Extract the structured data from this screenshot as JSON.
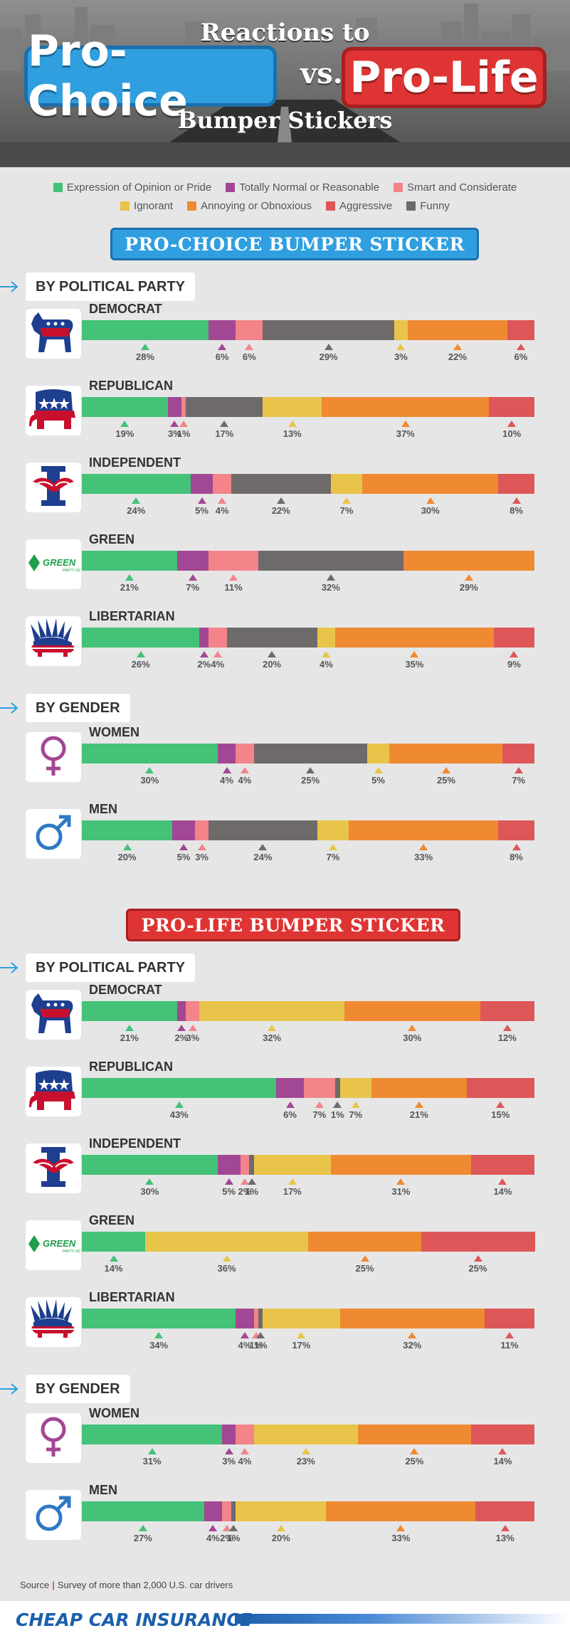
{
  "header": {
    "title_top": "Reactions to",
    "pro_choice": "Pro-Choice",
    "vs": "vs.",
    "pro_life": "Pro-Life",
    "title_bottom": "Bumper Stickers"
  },
  "colors": {
    "expression": "#43c278",
    "normal": "#a24793",
    "smart": "#f2848a",
    "ignorant": "#e8c54a",
    "annoying": "#ef8a32",
    "aggressive": "#dd5758",
    "funny": "#6e6a6a",
    "pro_choice_blue": "#2f9fe0",
    "pro_life_red": "#df3434"
  },
  "legend": [
    {
      "key": "expression",
      "label": "Expression of Opinion or Pride"
    },
    {
      "key": "normal",
      "label": "Totally Normal or Reasonable"
    },
    {
      "key": "smart",
      "label": "Smart and Considerate"
    },
    {
      "key": "ignorant",
      "label": "Ignorant"
    },
    {
      "key": "annoying",
      "label": "Annoying or Obnoxious"
    },
    {
      "key": "aggressive",
      "label": "Aggressive"
    },
    {
      "key": "funny",
      "label": "Funny"
    }
  ],
  "sections": {
    "pro_choice_title": "PRO-CHOICE BUMPER STICKER",
    "pro_life_title": "PRO-LIFE BUMPER STICKER",
    "by_party": "BY POLITICAL PARTY",
    "by_gender": "BY GENDER"
  },
  "chart_data": [
    {
      "type": "bar",
      "title": "PRO-CHOICE BUMPER STICKER",
      "stacked": true,
      "series_order": [
        "expression",
        "normal",
        "smart",
        "funny",
        "ignorant",
        "annoying",
        "aggressive"
      ],
      "rows": [
        {
          "group": "BY POLITICAL PARTY",
          "label": "DEMOCRAT",
          "icon": "democrat-donkey-icon",
          "values": {
            "expression": 28,
            "normal": 6,
            "smart": 6,
            "funny": 29,
            "ignorant": 3,
            "annoying": 22,
            "aggressive": 6
          }
        },
        {
          "group": "BY POLITICAL PARTY",
          "label": "REPUBLICAN",
          "icon": "republican-elephant-icon",
          "values": {
            "expression": 19,
            "normal": 3,
            "smart": 1,
            "funny": 17,
            "ignorant": 13,
            "annoying": 37,
            "aggressive": 10
          }
        },
        {
          "group": "BY POLITICAL PARTY",
          "label": "INDEPENDENT",
          "icon": "independent-eagle-icon",
          "values": {
            "expression": 24,
            "normal": 5,
            "smart": 4,
            "funny": 22,
            "ignorant": 7,
            "annoying": 30,
            "aggressive": 8
          }
        },
        {
          "group": "BY POLITICAL PARTY",
          "label": "GREEN",
          "icon": "green-party-icon",
          "values": {
            "expression": 21,
            "normal": 7,
            "smart": 11,
            "funny": 32,
            "ignorant": 0,
            "annoying": 29,
            "aggressive": 0
          }
        },
        {
          "group": "BY POLITICAL PARTY",
          "label": "LIBERTARIAN",
          "icon": "libertarian-porcupine-icon",
          "values": {
            "expression": 26,
            "normal": 2,
            "smart": 4,
            "funny": 20,
            "ignorant": 4,
            "annoying": 35,
            "aggressive": 9
          }
        },
        {
          "group": "BY GENDER",
          "label": "WOMEN",
          "icon": "female-symbol-icon",
          "values": {
            "expression": 30,
            "normal": 4,
            "smart": 4,
            "funny": 25,
            "ignorant": 5,
            "annoying": 25,
            "aggressive": 7
          }
        },
        {
          "group": "BY GENDER",
          "label": "MEN",
          "icon": "male-symbol-icon",
          "values": {
            "expression": 20,
            "normal": 5,
            "smart": 3,
            "funny": 24,
            "ignorant": 7,
            "annoying": 33,
            "aggressive": 8
          }
        }
      ]
    },
    {
      "type": "bar",
      "title": "PRO-LIFE BUMPER STICKER",
      "stacked": true,
      "series_order": [
        "expression",
        "normal",
        "smart",
        "funny",
        "ignorant",
        "annoying",
        "aggressive"
      ],
      "rows": [
        {
          "group": "BY POLITICAL PARTY",
          "label": "DEMOCRAT",
          "icon": "democrat-donkey-icon",
          "values": {
            "expression": 21,
            "normal": 2,
            "smart": 3,
            "funny": 0,
            "ignorant": 32,
            "annoying": 30,
            "aggressive": 12
          }
        },
        {
          "group": "BY POLITICAL PARTY",
          "label": "REPUBLICAN",
          "icon": "republican-elephant-icon",
          "values": {
            "expression": 43,
            "normal": 6,
            "smart": 7,
            "funny": 1,
            "ignorant": 7,
            "annoying": 21,
            "aggressive": 15
          }
        },
        {
          "group": "BY POLITICAL PARTY",
          "label": "INDEPENDENT",
          "icon": "independent-eagle-icon",
          "values": {
            "expression": 30,
            "normal": 5,
            "smart": 2,
            "funny": 1,
            "ignorant": 17,
            "annoying": 31,
            "aggressive": 14
          }
        },
        {
          "group": "BY POLITICAL PARTY",
          "label": "GREEN",
          "icon": "green-party-icon",
          "values": {
            "expression": 14,
            "normal": 0,
            "smart": 0,
            "funny": 0,
            "ignorant": 36,
            "annoying": 25,
            "aggressive": 25
          }
        },
        {
          "group": "BY POLITICAL PARTY",
          "label": "LIBERTARIAN",
          "icon": "libertarian-porcupine-icon",
          "values": {
            "expression": 34,
            "normal": 4,
            "smart": 1,
            "funny": 1,
            "ignorant": 17,
            "annoying": 32,
            "aggressive": 11
          }
        },
        {
          "group": "BY GENDER",
          "label": "WOMEN",
          "icon": "female-symbol-icon",
          "values": {
            "expression": 31,
            "normal": 3,
            "smart": 4,
            "funny": 0,
            "ignorant": 23,
            "annoying": 25,
            "aggressive": 14
          }
        },
        {
          "group": "BY GENDER",
          "label": "MEN",
          "icon": "male-symbol-icon",
          "values": {
            "expression": 27,
            "normal": 4,
            "smart": 2,
            "funny": 1,
            "ignorant": 20,
            "annoying": 33,
            "aggressive": 13
          }
        }
      ]
    }
  ],
  "green_logo_text": "GREEN",
  "source": {
    "label": "Source",
    "text": "Survey of more than 2,000 U.S. car drivers"
  },
  "footer": {
    "brand": "CHEAP CAR INSURANCE"
  }
}
